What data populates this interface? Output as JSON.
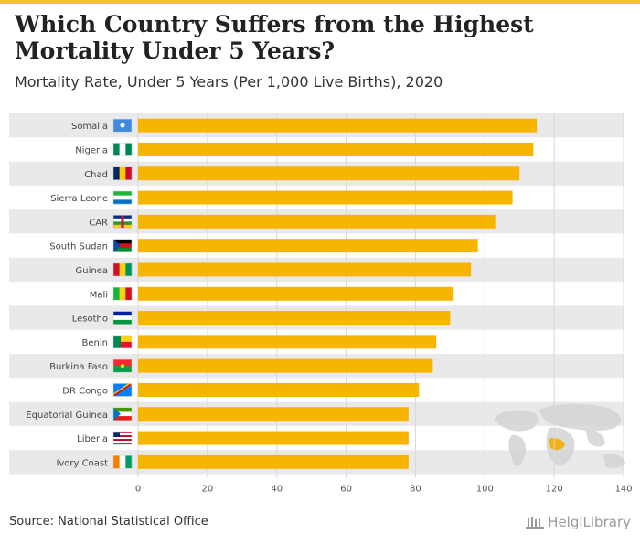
{
  "header": {
    "title": "Which Country Suffers from the Highest Mortality Under 5 Years?",
    "subtitle": "Mortality Rate, Under 5 Years (Per 1,000 Live Births), 2020"
  },
  "footer": {
    "source": "Source: National Statistical Office",
    "brand": "HelgiLibrary"
  },
  "colors": {
    "bar": "#f7b500",
    "band": "#e9e9e9",
    "grid": "#d8d8d8",
    "accent": "#f2c12e"
  },
  "chart_data": {
    "type": "bar",
    "orientation": "horizontal",
    "title": "Which Country Suffers from the Highest Mortality Under 5 Years?",
    "subtitle": "Mortality Rate, Under 5 Years (Per 1,000 Live Births), 2020",
    "xlabel": "",
    "ylabel": "",
    "xlim": [
      0,
      140
    ],
    "xticks": [
      0,
      20,
      40,
      60,
      80,
      100,
      120,
      140
    ],
    "grid": true,
    "categories": [
      "Somalia",
      "Nigeria",
      "Chad",
      "Sierra Leone",
      "CAR",
      "South Sudan",
      "Guinea",
      "Mali",
      "Lesotho",
      "Benin",
      "Burkina Faso",
      "DR Congo",
      "Equatorial Guinea",
      "Liberia",
      "Ivory Coast"
    ],
    "values": [
      115,
      114,
      110,
      108,
      103,
      98,
      96,
      91,
      90,
      86,
      85,
      81,
      78,
      78,
      78
    ]
  }
}
